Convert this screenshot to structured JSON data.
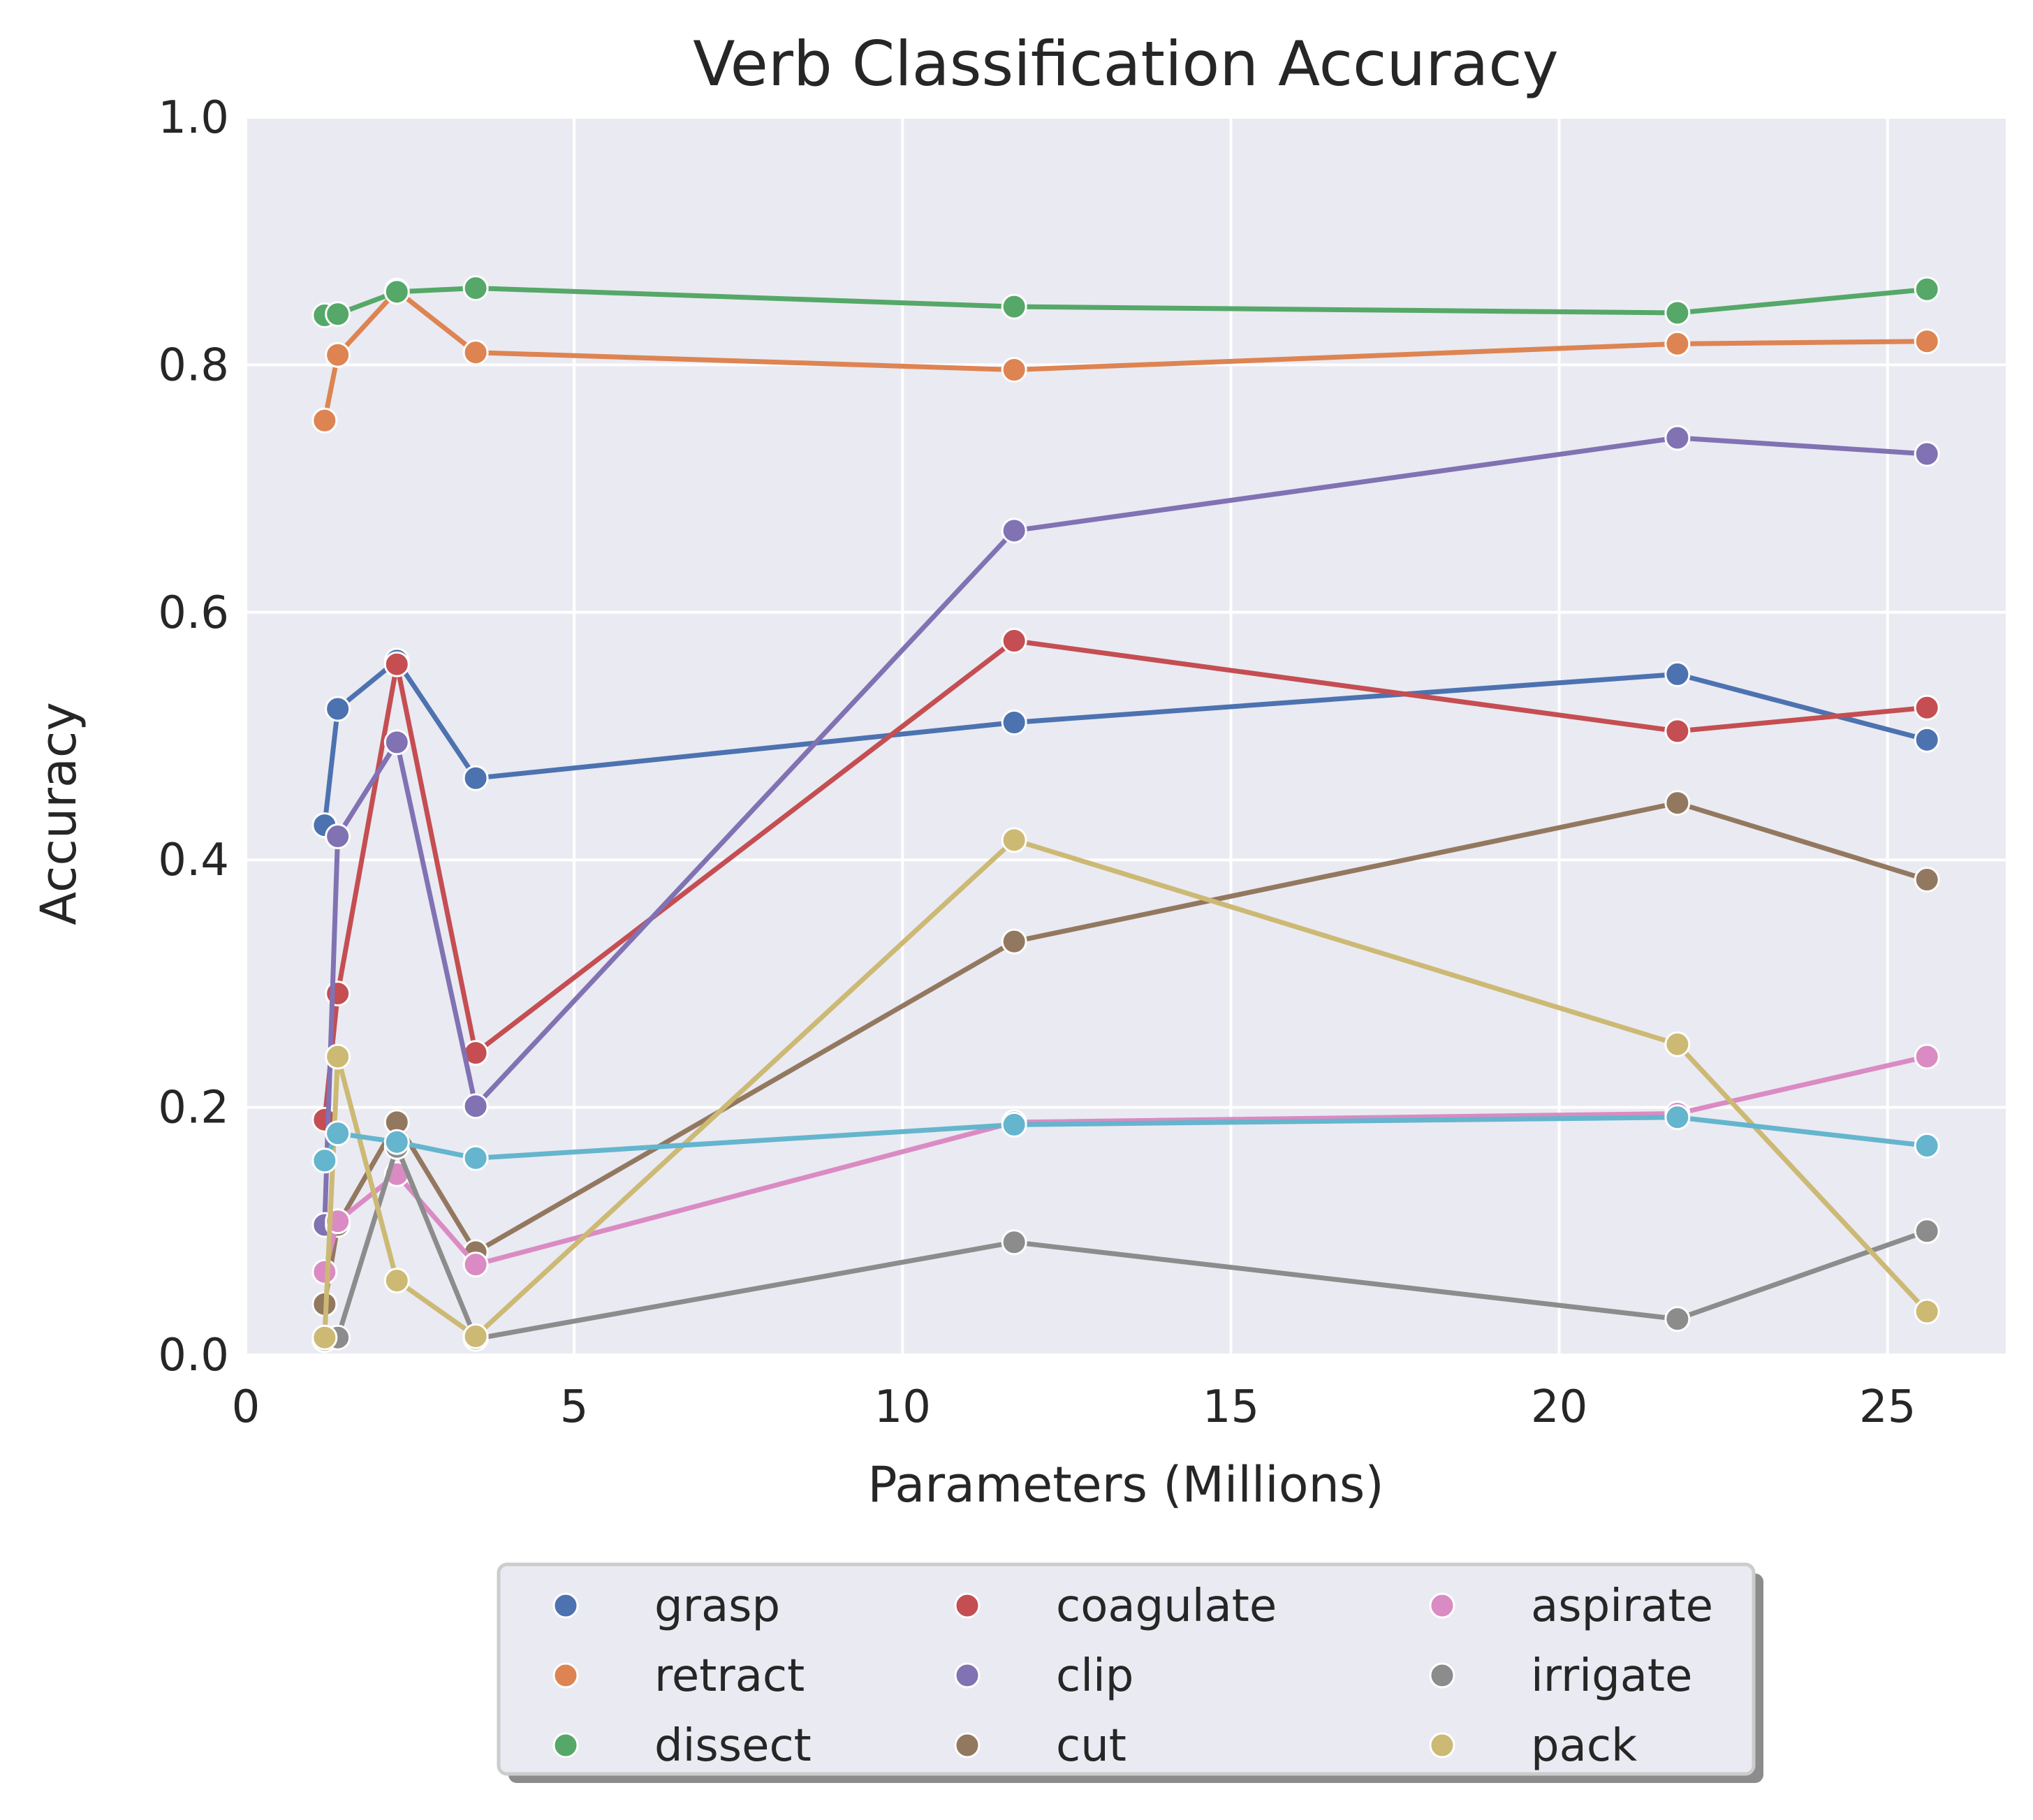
{
  "chart_data": {
    "type": "line",
    "title": "Verb Classification Accuracy",
    "xlabel": "Parameters (Millions)",
    "ylabel": "Accuracy",
    "xlim": [
      0,
      26.8
    ],
    "ylim": [
      0,
      1.0
    ],
    "xticks": [
      "0",
      "5",
      "10",
      "15",
      "20",
      "25"
    ],
    "yticks": [
      "0.0",
      "0.2",
      "0.4",
      "0.6",
      "0.8",
      "1.0"
    ],
    "grid": true,
    "legend_position": "bottom-center",
    "x": [
      1.2,
      1.4,
      2.3,
      3.5,
      11.7,
      21.8,
      25.6
    ],
    "series": [
      {
        "name": "grasp",
        "color": "#4c72b0",
        "values": [
          0.428,
          0.522,
          0.561,
          0.466,
          0.511,
          0.55,
          0.497
        ]
      },
      {
        "name": "retract",
        "color": "#dd8452",
        "values": [
          0.755,
          0.808,
          0.86,
          0.81,
          0.796,
          0.817,
          0.819
        ]
      },
      {
        "name": "dissect",
        "color": "#55a868",
        "values": [
          0.84,
          0.841,
          0.859,
          0.862,
          0.847,
          0.842,
          0.861
        ]
      },
      {
        "name": "coagulate",
        "color": "#c44e52",
        "values": [
          0.19,
          0.292,
          0.558,
          0.244,
          0.577,
          0.504,
          0.523
        ]
      },
      {
        "name": "clip",
        "color": "#8172b3",
        "values": [
          0.105,
          0.419,
          0.495,
          0.201,
          0.666,
          0.741,
          0.728
        ]
      },
      {
        "name": "cut",
        "color": "#937860",
        "values": [
          0.041,
          0.105,
          0.188,
          0.083,
          0.334,
          0.446,
          0.384
        ]
      },
      {
        "name": "aspirate",
        "color": "#da8bc3",
        "values": [
          0.067,
          0.108,
          0.146,
          0.073,
          0.188,
          0.195,
          0.241
        ]
      },
      {
        "name": "irrigate",
        "color": "#8c8c8c",
        "values": [
          0.012,
          0.014,
          0.168,
          0.013,
          0.091,
          0.029,
          0.1
        ]
      },
      {
        "name": "pack",
        "color": "#ccb974",
        "values": [
          0.014,
          0.241,
          0.06,
          0.015,
          0.416,
          0.251,
          0.035
        ]
      },
      {
        "name": "",
        "color": "#64b5cd",
        "values": [
          0.157,
          0.179,
          0.172,
          0.159,
          0.186,
          0.192,
          0.169
        ]
      }
    ]
  }
}
